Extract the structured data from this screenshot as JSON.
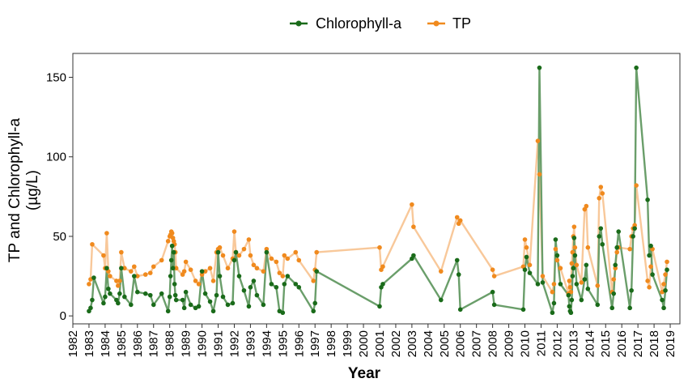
{
  "chart_data": {
    "type": "line",
    "xlabel": "Year",
    "ylabel_line1": "TP and Chlorophyll-a",
    "ylabel_line2": "(µg/L)",
    "xlim": [
      1982,
      2019.6
    ],
    "ylim": [
      -5,
      165
    ],
    "xticks": [
      1982,
      1983,
      1984,
      1985,
      1986,
      1987,
      1988,
      1989,
      1990,
      1991,
      1992,
      1993,
      1994,
      1995,
      1996,
      1997,
      1998,
      1999,
      2000,
      2001,
      2002,
      2003,
      2004,
      2005,
      2006,
      2007,
      2008,
      2009,
      2010,
      2011,
      2012,
      2013,
      2014,
      2015,
      2016,
      2017,
      2018,
      2019
    ],
    "yticks": [
      0,
      50,
      100,
      150
    ],
    "grid": false,
    "legend_position": "top",
    "series": [
      {
        "name": "Chlorophyll-a",
        "color": "#1a6b1a",
        "line_color": "#6a9e6a",
        "points": [
          [
            1983.0,
            3
          ],
          [
            1983.1,
            5
          ],
          [
            1983.2,
            10
          ],
          [
            1983.3,
            24
          ],
          [
            1983.9,
            8
          ],
          [
            1984.0,
            12
          ],
          [
            1984.1,
            30
          ],
          [
            1984.2,
            17
          ],
          [
            1984.3,
            14
          ],
          [
            1984.7,
            10
          ],
          [
            1984.8,
            8
          ],
          [
            1984.9,
            14
          ],
          [
            1985.0,
            30
          ],
          [
            1985.2,
            12
          ],
          [
            1985.6,
            7
          ],
          [
            1985.8,
            25
          ],
          [
            1986.0,
            15
          ],
          [
            1986.5,
            14
          ],
          [
            1986.8,
            13
          ],
          [
            1987.0,
            7
          ],
          [
            1987.5,
            14
          ],
          [
            1987.9,
            3
          ],
          [
            1988.0,
            12
          ],
          [
            1988.05,
            25
          ],
          [
            1988.1,
            35
          ],
          [
            1988.15,
            44
          ],
          [
            1988.2,
            30
          ],
          [
            1988.25,
            40
          ],
          [
            1988.3,
            20
          ],
          [
            1988.35,
            13
          ],
          [
            1988.4,
            10
          ],
          [
            1988.8,
            10
          ],
          [
            1988.9,
            5
          ],
          [
            1989.0,
            15
          ],
          [
            1989.3,
            7
          ],
          [
            1989.6,
            5
          ],
          [
            1989.8,
            6
          ],
          [
            1990.0,
            28
          ],
          [
            1990.2,
            14
          ],
          [
            1990.5,
            9
          ],
          [
            1990.7,
            3
          ],
          [
            1990.9,
            13
          ],
          [
            1991.0,
            40
          ],
          [
            1991.1,
            25
          ],
          [
            1991.3,
            12
          ],
          [
            1991.6,
            7
          ],
          [
            1991.9,
            8
          ],
          [
            1992.0,
            35
          ],
          [
            1992.1,
            40
          ],
          [
            1992.3,
            25
          ],
          [
            1992.6,
            16
          ],
          [
            1992.9,
            6
          ],
          [
            1993.0,
            18
          ],
          [
            1993.2,
            22
          ],
          [
            1993.4,
            13
          ],
          [
            1993.8,
            7
          ],
          [
            1994.0,
            40
          ],
          [
            1994.3,
            20
          ],
          [
            1994.6,
            18
          ],
          [
            1994.8,
            3
          ],
          [
            1995.0,
            2
          ],
          [
            1995.1,
            20
          ],
          [
            1995.3,
            25
          ],
          [
            1995.8,
            20
          ],
          [
            1996.0,
            18
          ],
          [
            1996.9,
            3
          ],
          [
            1997.0,
            8
          ],
          [
            1997.1,
            28
          ],
          [
            2001.0,
            6
          ],
          [
            2001.1,
            18
          ],
          [
            2001.2,
            20
          ],
          [
            2003.0,
            36
          ],
          [
            2003.1,
            38
          ],
          [
            2004.8,
            10
          ],
          [
            2005.8,
            35
          ],
          [
            2005.9,
            26
          ],
          [
            2006.0,
            4
          ],
          [
            2008.0,
            15
          ],
          [
            2008.1,
            7
          ],
          [
            2009.9,
            4
          ],
          [
            2010.0,
            29
          ],
          [
            2010.1,
            37
          ],
          [
            2010.3,
            27
          ],
          [
            2010.8,
            20
          ],
          [
            2010.9,
            156
          ],
          [
            2011.1,
            21
          ],
          [
            2011.7,
            2
          ],
          [
            2011.8,
            8
          ],
          [
            2011.9,
            48
          ],
          [
            2012.0,
            38
          ],
          [
            2012.2,
            20
          ],
          [
            2012.7,
            13
          ],
          [
            2012.75,
            6
          ],
          [
            2012.8,
            3
          ],
          [
            2012.85,
            2
          ],
          [
            2012.9,
            10
          ],
          [
            2012.95,
            25
          ],
          [
            2013.0,
            30
          ],
          [
            2013.05,
            49
          ],
          [
            2013.1,
            38
          ],
          [
            2013.2,
            20
          ],
          [
            2013.5,
            10
          ],
          [
            2013.7,
            23
          ],
          [
            2013.8,
            32
          ],
          [
            2013.9,
            17
          ],
          [
            2014.5,
            7
          ],
          [
            2014.6,
            50
          ],
          [
            2014.7,
            55
          ],
          [
            2014.8,
            45
          ],
          [
            2015.4,
            5
          ],
          [
            2015.5,
            14
          ],
          [
            2015.6,
            32
          ],
          [
            2015.7,
            43
          ],
          [
            2015.8,
            53
          ],
          [
            2016.5,
            5
          ],
          [
            2016.6,
            16
          ],
          [
            2016.7,
            50
          ],
          [
            2016.8,
            55
          ],
          [
            2016.9,
            156
          ],
          [
            2017.6,
            73
          ],
          [
            2017.7,
            38
          ],
          [
            2017.8,
            44
          ],
          [
            2017.9,
            26
          ],
          [
            2018.5,
            10
          ],
          [
            2018.6,
            5
          ],
          [
            2018.7,
            16
          ],
          [
            2018.8,
            29
          ]
        ]
      },
      {
        "name": "TP",
        "color": "#f08a1e",
        "line_color": "#f8c89a",
        "points": [
          [
            1983.0,
            20
          ],
          [
            1983.1,
            23
          ],
          [
            1983.2,
            45
          ],
          [
            1983.9,
            38
          ],
          [
            1984.0,
            30
          ],
          [
            1984.1,
            52
          ],
          [
            1984.2,
            28
          ],
          [
            1984.3,
            25
          ],
          [
            1984.7,
            22
          ],
          [
            1984.8,
            19
          ],
          [
            1984.9,
            22
          ],
          [
            1985.0,
            40
          ],
          [
            1985.2,
            30
          ],
          [
            1985.6,
            28
          ],
          [
            1985.8,
            31
          ],
          [
            1986.0,
            25
          ],
          [
            1986.5,
            26
          ],
          [
            1986.8,
            27
          ],
          [
            1987.0,
            31
          ],
          [
            1987.5,
            35
          ],
          [
            1987.9,
            47
          ],
          [
            1988.0,
            50
          ],
          [
            1988.05,
            51
          ],
          [
            1988.1,
            53
          ],
          [
            1988.15,
            52
          ],
          [
            1988.2,
            49
          ],
          [
            1988.25,
            47
          ],
          [
            1988.3,
            45
          ],
          [
            1988.35,
            40
          ],
          [
            1988.4,
            30
          ],
          [
            1988.8,
            26
          ],
          [
            1988.9,
            28
          ],
          [
            1989.0,
            34
          ],
          [
            1989.3,
            29
          ],
          [
            1989.6,
            22
          ],
          [
            1989.8,
            20
          ],
          [
            1990.0,
            26
          ],
          [
            1990.2,
            28
          ],
          [
            1990.5,
            30
          ],
          [
            1990.7,
            22
          ],
          [
            1990.9,
            40
          ],
          [
            1991.0,
            42
          ],
          [
            1991.1,
            43
          ],
          [
            1991.3,
            38
          ],
          [
            1991.6,
            30
          ],
          [
            1991.9,
            36
          ],
          [
            1992.0,
            53
          ],
          [
            1992.1,
            40
          ],
          [
            1992.3,
            38
          ],
          [
            1992.6,
            42
          ],
          [
            1992.9,
            48
          ],
          [
            1993.0,
            38
          ],
          [
            1993.2,
            32
          ],
          [
            1993.4,
            30
          ],
          [
            1993.8,
            28
          ],
          [
            1994.0,
            42
          ],
          [
            1994.3,
            36
          ],
          [
            1994.6,
            34
          ],
          [
            1994.8,
            27
          ],
          [
            1995.0,
            25
          ],
          [
            1995.1,
            38
          ],
          [
            1995.3,
            36
          ],
          [
            1995.8,
            40
          ],
          [
            1996.0,
            35
          ],
          [
            1996.9,
            22
          ],
          [
            1997.0,
            29
          ],
          [
            1997.1,
            40
          ],
          [
            2001.0,
            43
          ],
          [
            2001.1,
            29
          ],
          [
            2001.2,
            31
          ],
          [
            2003.0,
            70
          ],
          [
            2003.1,
            56
          ],
          [
            2004.8,
            28
          ],
          [
            2005.8,
            62
          ],
          [
            2005.9,
            58
          ],
          [
            2006.0,
            60
          ],
          [
            2008.0,
            29
          ],
          [
            2008.1,
            25
          ],
          [
            2009.9,
            31
          ],
          [
            2010.0,
            48
          ],
          [
            2010.1,
            43
          ],
          [
            2010.3,
            32
          ],
          [
            2010.8,
            110
          ],
          [
            2010.9,
            89
          ],
          [
            2011.1,
            25
          ],
          [
            2011.7,
            15
          ],
          [
            2011.8,
            20
          ],
          [
            2011.9,
            42
          ],
          [
            2012.0,
            35
          ],
          [
            2012.2,
            30
          ],
          [
            2012.7,
            14
          ],
          [
            2012.75,
            22
          ],
          [
            2012.8,
            18
          ],
          [
            2012.85,
            15
          ],
          [
            2012.9,
            33
          ],
          [
            2012.95,
            40
          ],
          [
            2013.0,
            50
          ],
          [
            2013.05,
            56
          ],
          [
            2013.1,
            43
          ],
          [
            2013.2,
            32
          ],
          [
            2013.5,
            21
          ],
          [
            2013.7,
            67
          ],
          [
            2013.8,
            69
          ],
          [
            2013.9,
            43
          ],
          [
            2014.5,
            19
          ],
          [
            2014.6,
            74
          ],
          [
            2014.7,
            81
          ],
          [
            2014.8,
            77
          ],
          [
            2015.4,
            15
          ],
          [
            2015.5,
            23
          ],
          [
            2015.6,
            30
          ],
          [
            2015.7,
            40
          ],
          [
            2015.8,
            43
          ],
          [
            2016.5,
            42
          ],
          [
            2016.6,
            50
          ],
          [
            2016.7,
            55
          ],
          [
            2016.8,
            57
          ],
          [
            2016.9,
            82
          ],
          [
            2017.6,
            22
          ],
          [
            2017.7,
            18
          ],
          [
            2017.8,
            31
          ],
          [
            2017.9,
            42
          ],
          [
            2018.5,
            15
          ],
          [
            2018.6,
            20
          ],
          [
            2018.7,
            26
          ],
          [
            2018.8,
            34
          ]
        ]
      }
    ]
  }
}
